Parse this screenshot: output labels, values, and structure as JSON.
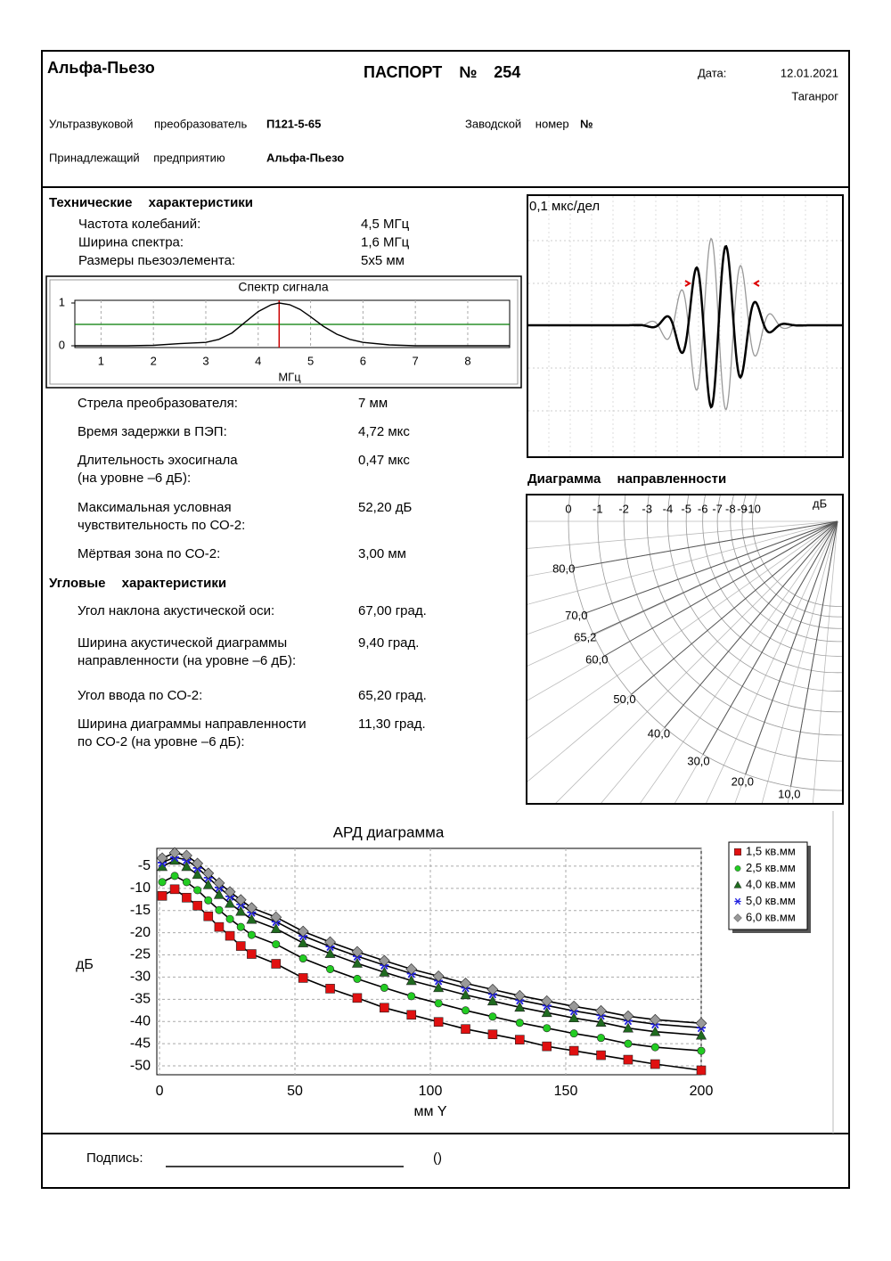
{
  "header": {
    "company": "Альфа-Пьезо",
    "title": "ПАСПОРТ № 254",
    "date_label": "Дата:",
    "date": "12.01.2021",
    "city": "Таганрог",
    "transducer_label": "Ультразвуковой преобразователь",
    "transducer_model": "П121-5-65",
    "serial_label": "Заводской номер",
    "serial_value": "№",
    "owner_label": "Принадлежащий предприятию",
    "owner": "Альфа-Пьезо"
  },
  "technical": {
    "title": "Технические характеристики",
    "items": [
      {
        "label": "Частота колебаний:",
        "value": "4,5 МГц"
      },
      {
        "label": "Ширина спектра:",
        "value": "1,6 МГц"
      },
      {
        "label": "Размеры пьезоэлемента:",
        "value": "5x5 мм"
      }
    ]
  },
  "spectrum": {
    "title": "Спектр сигнала",
    "x_label": "МГц",
    "x": [
      0.5,
      1,
      1.5,
      2,
      2.5,
      3,
      3.25,
      3.5,
      3.75,
      4,
      4.25,
      4.4,
      4.6,
      4.8,
      5,
      5.25,
      5.5,
      5.75,
      6,
      6.5,
      7,
      8,
      8.8
    ],
    "values": [
      0,
      0,
      0,
      0.01,
      0.05,
      0.08,
      0.15,
      0.3,
      0.55,
      0.8,
      0.96,
      1,
      0.96,
      0.85,
      0.68,
      0.45,
      0.27,
      0.15,
      0.08,
      0.02,
      0,
      0,
      0
    ],
    "color": "#000000",
    "marker": 4.4,
    "marker_color": "#cc0000",
    "level": 0.5,
    "level_color": "#007a00",
    "xlim": [
      0.5,
      8.8
    ],
    "ylim": [
      0,
      1
    ],
    "xticks": [
      1,
      2,
      3,
      4,
      5,
      6,
      7,
      8
    ],
    "yticks": [
      0,
      1
    ]
  },
  "parameters": [
    {
      "lines": [
        "Стрела преобразователя:"
      ],
      "value": "7 мм"
    },
    {
      "lines": [
        "Время задержки в ПЭП:"
      ],
      "value": "4,72 мкс"
    },
    {
      "lines": [
        "Длительность эхосигнала",
        "(на уровне –6 дБ):"
      ],
      "value": "0,47 мкс"
    },
    {
      "lines": [
        "Максимальная условная",
        "чувствительность по СО-2:"
      ],
      "value": "52,20 дБ"
    },
    {
      "lines": [
        "Мёртвая зона по СО-2:"
      ],
      "value": "3,00 мм"
    }
  ],
  "angular": {
    "title": "Угловые характеристики",
    "items": [
      {
        "lines": [
          "Угол наклона акустической оси:"
        ],
        "value": "67,00 град."
      },
      {
        "lines": [
          "Ширина акустической диаграммы",
          "направленности (на уровне –6 дБ):"
        ],
        "value": "9,40 град."
      },
      {
        "lines": [
          "Угол ввода по СО-2:"
        ],
        "value": "65,20 град."
      },
      {
        "lines": [
          "Ширина диаграммы направленности",
          "по СО-2 (на уровне –6 дБ):"
        ],
        "value": "11,30 град."
      }
    ]
  },
  "waveform": {
    "scale_label": "0,1 мкс/дел"
  },
  "directivity": {
    "title": "Диаграмма направленности",
    "unit": "дБ",
    "db_ticks": [
      0,
      -1,
      -2,
      -3,
      -4,
      -5,
      -6,
      -7,
      -8,
      -9,
      -10
    ],
    "angle_ticks": [
      {
        "value": 80,
        "label": "80,0"
      },
      {
        "value": 70,
        "label": "70,0"
      },
      {
        "value": 65.2,
        "label": "65,2"
      },
      {
        "value": 60,
        "label": "60,0"
      },
      {
        "value": 50,
        "label": "50,0"
      },
      {
        "value": 40,
        "label": "40,0"
      },
      {
        "value": 30,
        "label": "30,0"
      },
      {
        "value": 20,
        "label": "20,0"
      },
      {
        "value": 10,
        "label": "10,0"
      }
    ]
  },
  "chart_data": {
    "type": "line",
    "title": "АРД диаграмма",
    "x_label": "мм Y",
    "y_label": "дБ",
    "x": [
      1,
      5.6,
      10,
      14,
      18,
      22,
      26,
      30,
      34,
      43,
      53,
      63,
      73,
      83,
      93,
      103,
      113,
      123,
      133,
      143,
      153,
      163,
      173,
      183,
      200
    ],
    "series": [
      {
        "name": "1,5 кв.мм",
        "color": "#e01010",
        "marker": "square",
        "values": [
          -11.7,
          -10.2,
          -12.1,
          -13.9,
          -16.3,
          -18.7,
          -20.7,
          -23,
          -24.8,
          -27,
          -30.2,
          -32.6,
          -34.7,
          -36.9,
          -38.5,
          -40.1,
          -41.7,
          -42.9,
          -44.1,
          -45.6,
          -46.6,
          -47.6,
          -48.6,
          -49.6,
          -51
        ]
      },
      {
        "name": "2,5 кв.мм",
        "color": "#22cc22",
        "marker": "circle",
        "values": [
          -8.6,
          -7.2,
          -8.6,
          -10.4,
          -12.7,
          -14.9,
          -16.9,
          -18.7,
          -20.5,
          -22.6,
          -25.8,
          -28.2,
          -30.4,
          -32.4,
          -34.3,
          -35.9,
          -37.5,
          -38.9,
          -40.3,
          -41.5,
          -42.7,
          -43.7,
          -45,
          -45.8,
          -46.6
        ]
      },
      {
        "name": "4,0 кв.мм",
        "color": "#1f6b1f",
        "marker": "triangle",
        "values": [
          -5.1,
          -3.7,
          -5.1,
          -6.9,
          -9.2,
          -11.4,
          -13.4,
          -15.2,
          -17,
          -19.1,
          -22.3,
          -24.7,
          -26.9,
          -28.9,
          -30.8,
          -32.4,
          -34,
          -35.4,
          -36.8,
          -38,
          -39.2,
          -40.2,
          -41.5,
          -42.3,
          -43.1
        ]
      },
      {
        "name": "5,0 кв.мм",
        "color": "#2020e0",
        "marker": "star",
        "values": [
          -4.2,
          -3,
          -3.6,
          -5.4,
          -7.6,
          -9.8,
          -11.8,
          -13.6,
          -15.4,
          -17.5,
          -20.7,
          -23.1,
          -25.3,
          -27.3,
          -29.2,
          -30.8,
          -32.4,
          -33.8,
          -35.2,
          -36.4,
          -37.6,
          -38.6,
          -39.8,
          -40.6,
          -41.4
        ]
      },
      {
        "name": "6,0 кв.мм",
        "color": "#999999",
        "marker": "diamond",
        "values": [
          -3.2,
          -2,
          -2.6,
          -4.4,
          -6.6,
          -8.8,
          -10.8,
          -12.6,
          -14.4,
          -16.5,
          -19.7,
          -22.1,
          -24.3,
          -26.3,
          -28.2,
          -29.8,
          -31.4,
          -32.8,
          -34.2,
          -35.4,
          -36.6,
          -37.6,
          -38.8,
          -39.6,
          -40.4
        ]
      }
    ],
    "xlim": [
      -1,
      200
    ],
    "ylim": [
      -52,
      -1
    ],
    "xticks": [
      0,
      50,
      100,
      150,
      200
    ],
    "yticks": [
      -5,
      -10,
      -15,
      -20,
      -25,
      -30,
      -35,
      -40,
      -45,
      -50
    ],
    "grid": true,
    "legend": "top-right"
  },
  "footer": {
    "signature_label": "Подпись:",
    "name_placeholder": "()"
  }
}
